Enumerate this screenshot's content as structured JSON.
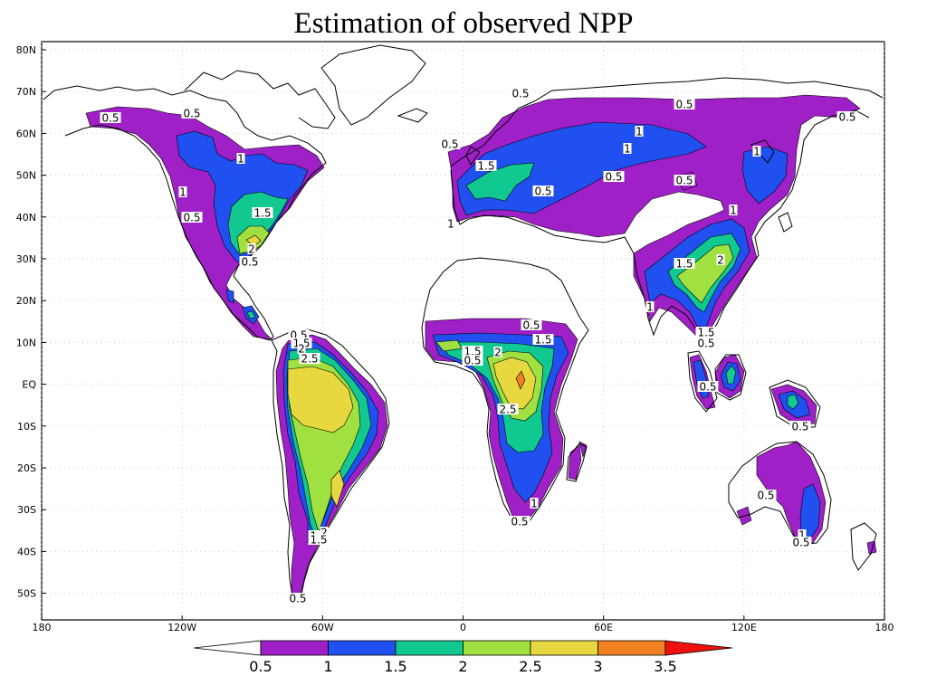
{
  "title": "Estimation of observed NPP",
  "lat_labels": [
    "80N",
    "70N",
    "60N",
    "50N",
    "40N",
    "30N",
    "20N",
    "10N",
    "EQ",
    "10S",
    "20S",
    "30S",
    "40S",
    "50S"
  ],
  "lon_labels": [
    "180",
    "120W",
    "60W",
    "0",
    "60E",
    "120E",
    "180"
  ],
  "colorbar": {
    "ticks": [
      "0.5",
      "1",
      "1.5",
      "2",
      "2.5",
      "3",
      "3.5"
    ],
    "colors": [
      "#ffffff",
      "#a020c8",
      "#2050f0",
      "#10c890",
      "#a0e040",
      "#e8d840",
      "#f08020",
      "#f01010"
    ]
  },
  "contour_labels": [
    "0.5",
    "1",
    "1.5",
    "2",
    "2.5"
  ]
}
